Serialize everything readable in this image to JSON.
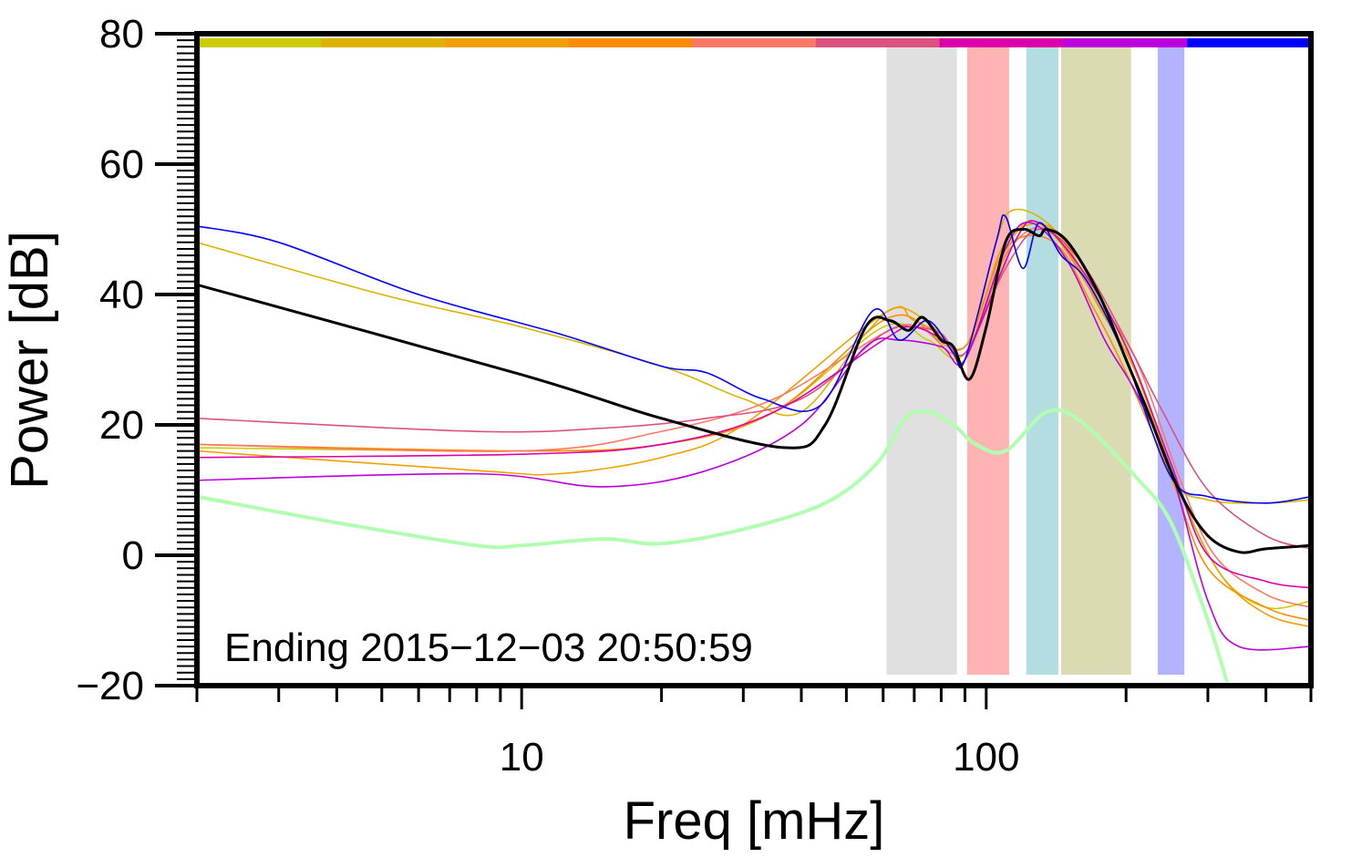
{
  "chart_data": {
    "type": "line",
    "xlabel": "Freq [mHz]",
    "ylabel": "Power [dB]",
    "xscale": "log",
    "xlim": [
      2,
      500
    ],
    "ylim": [
      -20,
      80
    ],
    "xticks": [
      {
        "value": 10,
        "label": "10"
      },
      {
        "value": 100,
        "label": "100"
      }
    ],
    "yticks": [
      {
        "value": -20,
        "label": "−20"
      },
      {
        "value": 0,
        "label": "0"
      },
      {
        "value": 20,
        "label": "20"
      },
      {
        "value": 40,
        "label": "40"
      },
      {
        "value": 60,
        "label": "60"
      },
      {
        "value": 80,
        "label": "80"
      }
    ],
    "annotation": "Ending 2015−12−03 20:50:59",
    "top_color_bar": [
      "#cccc00",
      "#ddb300",
      "#f0a000",
      "#ff8c00",
      "#ff7866",
      "#dd5080",
      "#dd00aa",
      "#bb00dd",
      "#0000ff"
    ],
    "bands": [
      {
        "from": 61,
        "to": 86.5,
        "color": "#e0e0e0"
      },
      {
        "from": 91,
        "to": 112,
        "color": "#ffb3b3"
      },
      {
        "from": 122,
        "to": 143,
        "color": "#b3dde0"
      },
      {
        "from": 145,
        "to": 205,
        "color": "#dadab3"
      },
      {
        "from": 234,
        "to": 267,
        "color": "#b3b3ff"
      }
    ],
    "series": [
      {
        "color": "#b0ffb0",
        "width": 4,
        "points": [
          [
            2,
            9
          ],
          [
            4,
            5
          ],
          [
            8,
            1.5
          ],
          [
            10,
            1.5
          ],
          [
            15,
            2.5
          ],
          [
            20,
            1.8
          ],
          [
            30,
            4
          ],
          [
            45,
            8
          ],
          [
            58,
            14
          ],
          [
            67,
            21
          ],
          [
            75,
            22
          ],
          [
            85,
            20
          ],
          [
            95,
            17
          ],
          [
            110,
            16
          ],
          [
            135,
            22
          ],
          [
            160,
            20.5
          ],
          [
            210,
            12
          ],
          [
            250,
            5
          ],
          [
            300,
            -10
          ],
          [
            330,
            -19.5
          ]
        ]
      },
      {
        "color": "#cccc00",
        "width": 1.6,
        "points": [
          [
            2,
            16.5
          ],
          [
            10,
            16
          ],
          [
            20,
            17
          ],
          [
            35,
            22
          ],
          [
            60,
            35
          ],
          [
            75,
            33
          ],
          [
            90,
            31
          ],
          [
            115,
            49
          ],
          [
            135,
            50
          ],
          [
            180,
            38
          ],
          [
            210,
            28
          ],
          [
            260,
            10
          ],
          [
            320,
            -3
          ],
          [
            400,
            -8
          ],
          [
            500,
            -7
          ]
        ]
      },
      {
        "color": "#ddb300",
        "width": 1.6,
        "points": [
          [
            2,
            48
          ],
          [
            5,
            40
          ],
          [
            10,
            35
          ],
          [
            20,
            29
          ],
          [
            30,
            24
          ],
          [
            40,
            22
          ],
          [
            55,
            34
          ],
          [
            65,
            38
          ],
          [
            80,
            34
          ],
          [
            90,
            30
          ],
          [
            105,
            48
          ],
          [
            115,
            53
          ],
          [
            140,
            50
          ],
          [
            170,
            40
          ],
          [
            200,
            30
          ],
          [
            250,
            12
          ],
          [
            300,
            8.5
          ],
          [
            400,
            8
          ],
          [
            500,
            8.5
          ]
        ]
      },
      {
        "color": "#f0a000",
        "width": 1.6,
        "points": [
          [
            2,
            16
          ],
          [
            8,
            13
          ],
          [
            12,
            12.5
          ],
          [
            20,
            15
          ],
          [
            30,
            20
          ],
          [
            60,
            37
          ],
          [
            70,
            36
          ],
          [
            90,
            32
          ],
          [
            110,
            48
          ],
          [
            140,
            50
          ],
          [
            175,
            38
          ],
          [
            210,
            28
          ],
          [
            260,
            10
          ],
          [
            320,
            -3
          ],
          [
            400,
            -9
          ],
          [
            500,
            -11
          ]
        ]
      },
      {
        "color": "#ff8c00",
        "width": 1.6,
        "points": [
          [
            2,
            17
          ],
          [
            10,
            16
          ],
          [
            20,
            17
          ],
          [
            35,
            22
          ],
          [
            60,
            36
          ],
          [
            75,
            35
          ],
          [
            90,
            32
          ],
          [
            110,
            47
          ],
          [
            140,
            48
          ],
          [
            170,
            38
          ],
          [
            200,
            28
          ],
          [
            250,
            12
          ],
          [
            300,
            -2
          ],
          [
            400,
            -8
          ],
          [
            500,
            -10
          ]
        ]
      },
      {
        "color": "#ff7866",
        "width": 1.6,
        "points": [
          [
            2,
            17
          ],
          [
            10,
            16
          ],
          [
            20,
            19
          ],
          [
            35,
            24
          ],
          [
            60,
            34
          ],
          [
            72,
            35
          ],
          [
            90,
            31
          ],
          [
            110,
            46
          ],
          [
            135,
            50
          ],
          [
            170,
            40
          ],
          [
            210,
            30
          ],
          [
            260,
            12
          ],
          [
            310,
            0
          ],
          [
            400,
            -6
          ],
          [
            500,
            -8
          ]
        ]
      },
      {
        "color": "#dd5080",
        "width": 1.6,
        "points": [
          [
            2,
            21
          ],
          [
            8,
            19
          ],
          [
            15,
            19.5
          ],
          [
            25,
            21
          ],
          [
            40,
            24
          ],
          [
            60,
            34
          ],
          [
            70,
            35
          ],
          [
            80,
            34
          ],
          [
            90,
            31
          ],
          [
            110,
            44
          ],
          [
            130,
            50
          ],
          [
            160,
            45
          ],
          [
            200,
            33
          ],
          [
            240,
            22
          ],
          [
            300,
            10
          ],
          [
            400,
            3
          ],
          [
            500,
            1
          ]
        ]
      },
      {
        "color": "#dd00aa",
        "width": 1.6,
        "points": [
          [
            2,
            15
          ],
          [
            10,
            15.5
          ],
          [
            20,
            17
          ],
          [
            35,
            22
          ],
          [
            60,
            33
          ],
          [
            70,
            35
          ],
          [
            85,
            32
          ],
          [
            90,
            30
          ],
          [
            115,
            48
          ],
          [
            130,
            51
          ],
          [
            160,
            44
          ],
          [
            200,
            32
          ],
          [
            250,
            14
          ],
          [
            300,
            0
          ],
          [
            400,
            -4
          ],
          [
            500,
            -5
          ]
        ]
      },
      {
        "color": "#bb00dd",
        "width": 1.6,
        "points": [
          [
            2,
            11.5
          ],
          [
            8,
            12.5
          ],
          [
            15,
            10.5
          ],
          [
            25,
            13
          ],
          [
            40,
            20
          ],
          [
            55,
            32
          ],
          [
            65,
            33
          ],
          [
            80,
            32
          ],
          [
            90,
            30
          ],
          [
            110,
            47
          ],
          [
            125,
            51
          ],
          [
            150,
            45
          ],
          [
            180,
            33
          ],
          [
            210,
            25
          ],
          [
            250,
            13
          ],
          [
            300,
            -7
          ],
          [
            350,
            -14
          ],
          [
            500,
            -14
          ]
        ]
      },
      {
        "color": "#0000ff",
        "width": 1.6,
        "points": [
          [
            2,
            50.5
          ],
          [
            3,
            48
          ],
          [
            6,
            40
          ],
          [
            12,
            34
          ],
          [
            20,
            29
          ],
          [
            25,
            28
          ],
          [
            33,
            24
          ],
          [
            44,
            23
          ],
          [
            57,
            37.5
          ],
          [
            65,
            33
          ],
          [
            75,
            36
          ],
          [
            85,
            31
          ],
          [
            90,
            30
          ],
          [
            105,
            48
          ],
          [
            110,
            52
          ],
          [
            120,
            44
          ],
          [
            130,
            51
          ],
          [
            145,
            46
          ],
          [
            165,
            42
          ],
          [
            200,
            30
          ],
          [
            250,
            12
          ],
          [
            300,
            9
          ],
          [
            400,
            8
          ],
          [
            500,
            9
          ]
        ]
      },
      {
        "color": "#000000",
        "width": 3,
        "points": [
          [
            2,
            41.5
          ],
          [
            10,
            27.7
          ],
          [
            20,
            21
          ],
          [
            37,
            16.5
          ],
          [
            45,
            20
          ],
          [
            55,
            35
          ],
          [
            62,
            36
          ],
          [
            68,
            34.5
          ],
          [
            73,
            36.5
          ],
          [
            80,
            33
          ],
          [
            85,
            32
          ],
          [
            92,
            27
          ],
          [
            100,
            35
          ],
          [
            110,
            48
          ],
          [
            120,
            50
          ],
          [
            130,
            49
          ],
          [
            135,
            50
          ],
          [
            150,
            48
          ],
          [
            175,
            40
          ],
          [
            200,
            30
          ],
          [
            220,
            23
          ],
          [
            260,
            10
          ],
          [
            300,
            3
          ],
          [
            350,
            0.5
          ],
          [
            400,
            1
          ],
          [
            500,
            1.5
          ]
        ]
      }
    ]
  }
}
